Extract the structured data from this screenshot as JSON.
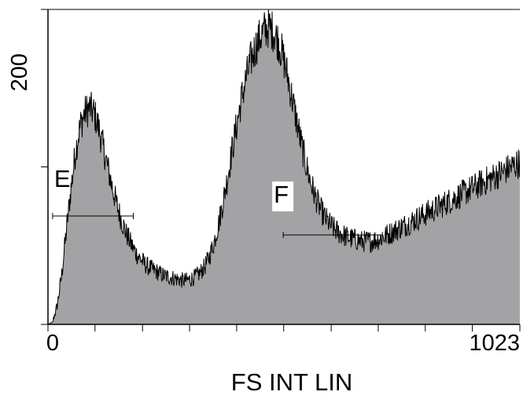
{
  "chart_data": {
    "type": "area",
    "title": "",
    "xlabel": "FS INT LIN",
    "ylabel": "",
    "xlim": [
      0,
      1023
    ],
    "ylim": [
      0,
      250
    ],
    "x_tick_labels": [
      {
        "value": 0,
        "label": "0"
      },
      {
        "value": 1023,
        "label": "1023"
      }
    ],
    "y_tick_labels": [
      {
        "value": 200,
        "label": "200"
      }
    ],
    "x_minor_ticks": [
      0,
      102,
      205,
      307,
      409,
      511,
      614,
      716,
      818,
      920,
      1023
    ],
    "y_minor_ticks": [
      0,
      125,
      250
    ],
    "fill_color": "#a3a3a6",
    "line_color": "#000000",
    "series": [
      {
        "x": [
          0,
          10,
          20,
          30,
          40,
          50,
          60,
          70,
          80,
          90,
          100,
          110,
          120,
          130,
          140,
          150,
          160,
          170,
          180,
          190,
          200,
          210,
          220,
          230,
          240,
          250,
          260,
          270,
          280,
          290,
          300,
          310,
          320,
          330,
          340,
          350,
          360,
          370,
          380,
          390,
          400,
          410,
          420,
          430,
          440,
          450,
          460,
          470,
          480,
          490,
          500,
          510,
          520,
          530,
          540,
          550,
          560,
          570,
          580,
          590,
          600,
          610,
          620,
          630,
          640,
          650,
          660,
          670,
          680,
          690,
          700,
          710,
          720,
          730,
          740,
          750,
          760,
          770,
          780,
          790,
          800,
          810,
          820,
          830,
          840,
          850,
          860,
          870,
          880,
          890,
          900,
          910,
          920,
          930,
          940,
          950,
          960,
          970,
          980,
          990,
          1000,
          1010,
          1020,
          1023
        ],
        "y": [
          0,
          2,
          15,
          40,
          75,
          108,
          138,
          158,
          168,
          172,
          168,
          156,
          140,
          124,
          108,
          94,
          82,
          72,
          64,
          57,
          52,
          48,
          45,
          43,
          41,
          39,
          38,
          37,
          36,
          35,
          35,
          36,
          38,
          41,
          46,
          54,
          65,
          80,
          98,
          118,
          140,
          160,
          180,
          196,
          210,
          220,
          228,
          234,
          236,
          232,
          224,
          212,
          196,
          178,
          160,
          142,
          126,
          112,
          101,
          92,
          85,
          80,
          76,
          73,
          71,
          69,
          68,
          67,
          66,
          66,
          66,
          67,
          68,
          70,
          72,
          74,
          76,
          78,
          80,
          82,
          84,
          86,
          88,
          90,
          92,
          94,
          96,
          98,
          100,
          102,
          104,
          106,
          108,
          110,
          112,
          114,
          116,
          118,
          120,
          122,
          124,
          126,
          128,
          129
        ]
      }
    ],
    "gates": [
      {
        "label": "E",
        "x_range": [
          10,
          185
        ],
        "y": 86
      },
      {
        "label": "F",
        "x_range": [
          510,
          725
        ],
        "y": 71
      }
    ]
  }
}
